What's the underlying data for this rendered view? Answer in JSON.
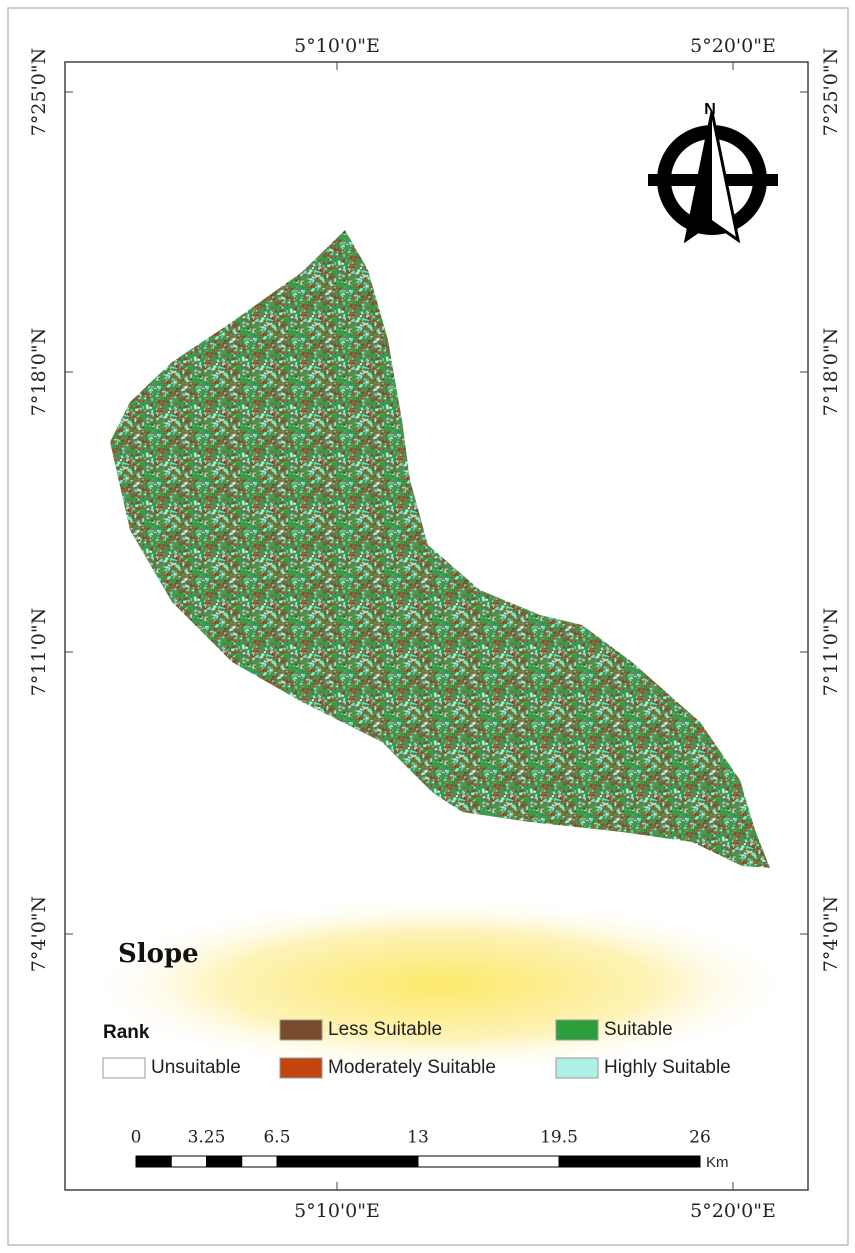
{
  "map": {
    "title": "Slope",
    "graticule": {
      "top": [
        "5°10'0\"E",
        "5°20'0\"E"
      ],
      "bottom": [
        "5°10'0\"E",
        "5°20'0\"E"
      ],
      "left": [
        "7°25'0\"N",
        "7°18'0\"N",
        "7°11'0\"N",
        "7°4'0\"N"
      ],
      "right": [
        "7°25'0\"N",
        "7°18'0\"N",
        "7°11'0\"N",
        "7°4'0\"N"
      ]
    },
    "north": "N",
    "legend": {
      "title": "Rank",
      "items": [
        {
          "label": "Unsuitable",
          "color": "#ffffff"
        },
        {
          "label": "Less Suitable",
          "color": "#7a4a2c"
        },
        {
          "label": "Moderately Suitable",
          "color": "#c2440f"
        },
        {
          "label": "Suitable",
          "color": "#2e9d3c"
        },
        {
          "label": "Highly Suitable",
          "color": "#aef0e6"
        }
      ]
    },
    "scale_bar": {
      "ticks": [
        0,
        3.25,
        6.5,
        13,
        19.5,
        26
      ],
      "unit": "Km"
    }
  }
}
